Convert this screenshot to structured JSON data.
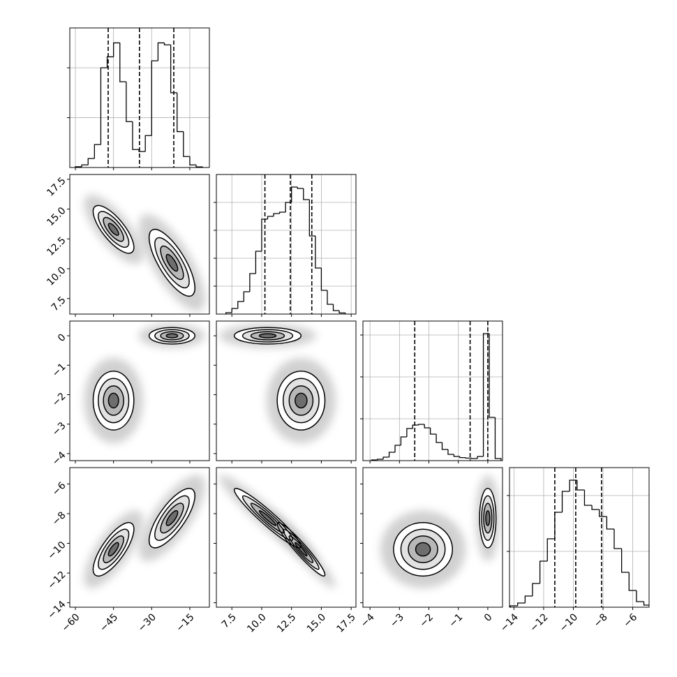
{
  "chart_data": {
    "type": "corner",
    "contour_sigmas": [
      0.5,
      1,
      1.5,
      2
    ],
    "parameters": [
      {
        "range": [
          -62.2,
          -7.3
        ],
        "ticks": [
          {
            "value": -60,
            "label": "−60"
          },
          {
            "value": -45,
            "label": "−45"
          },
          {
            "value": -30,
            "label": "−30"
          },
          {
            "value": -15,
            "label": "−15"
          }
        ],
        "bins": [
          -60,
          -57.5,
          -55,
          -52.5,
          -50,
          -47.5,
          -45,
          -42.5,
          -40,
          -37.5,
          -35,
          -32.5,
          -30,
          -27.5,
          -25,
          -22.5,
          -20,
          -17.5,
          -15,
          -12.5,
          -10
        ],
        "counts": [
          4,
          13,
          45,
          115,
          500,
          555,
          625,
          430,
          230,
          90,
          80,
          160,
          535,
          625,
          615,
          375,
          180,
          55,
          13,
          3
        ],
        "hist_ylim": [
          0,
          700
        ],
        "hist_yticks": [
          250,
          500
        ],
        "quantiles": [
          -47.1,
          -34.8,
          -21.3
        ]
      },
      {
        "range": [
          6.2,
          17.9
        ],
        "ticks": [
          7.5,
          {
            "value": 10,
            "label": "10.0"
          },
          12.5,
          {
            "value": 15,
            "label": "15.0"
          },
          17.5
        ],
        "bins": [
          7,
          7.5,
          8,
          8.5,
          9,
          9.5,
          10,
          10.5,
          11,
          11.5,
          12,
          12.5,
          13,
          13.5,
          14,
          14.5,
          15,
          15.5,
          16,
          16.5,
          17
        ],
        "counts": [
          10,
          40,
          90,
          160,
          290,
          450,
          680,
          700,
          720,
          730,
          800,
          910,
          900,
          820,
          560,
          330,
          170,
          70,
          25,
          8
        ],
        "hist_ylim": [
          0,
          1000
        ],
        "hist_yticks": [
          200,
          400,
          600,
          800
        ],
        "quantiles": [
          10.27,
          12.4,
          14.2
        ]
      },
      {
        "range": [
          -4.24,
          0.5
        ],
        "ticks": [
          {
            "value": -4,
            "label": "−4"
          },
          {
            "value": -3,
            "label": "−3"
          },
          {
            "value": -2,
            "label": "−2"
          },
          {
            "value": -1,
            "label": "−1"
          },
          0
        ],
        "bins": [
          -3.95,
          -3.75,
          -3.55,
          -3.35,
          -3.15,
          -2.95,
          -2.75,
          -2.55,
          -2.35,
          -2.15,
          -1.95,
          -1.75,
          -1.55,
          -1.35,
          -1.15,
          -0.95,
          -0.75,
          -0.55,
          -0.35,
          -0.15,
          0.05,
          0.25,
          0.45
        ],
        "counts": [
          5,
          10,
          25,
          60,
          110,
          170,
          230,
          255,
          260,
          235,
          190,
          130,
          80,
          45,
          30,
          22,
          18,
          15,
          30,
          910,
          310,
          15
        ],
        "hist_ylim": [
          0,
          1000
        ],
        "hist_yticks": [
          300,
          600,
          900
        ],
        "quantiles": [
          -2.48,
          -0.6,
          0.0
        ]
      },
      {
        "range": [
          -14.3,
          -4.9
        ],
        "ticks": [
          {
            "value": -14,
            "label": "−14"
          },
          {
            "value": -12,
            "label": "−12"
          },
          {
            "value": -10,
            "label": "−10"
          },
          {
            "value": -8,
            "label": "−8"
          },
          {
            "value": -6,
            "label": "−6"
          }
        ],
        "bins": [
          -14.25,
          -13.75,
          -13.25,
          -12.75,
          -12.25,
          -11.75,
          -11.25,
          -10.75,
          -10.25,
          -9.75,
          -9.25,
          -8.75,
          -8.25,
          -7.75,
          -7.25,
          -6.75,
          -6.25,
          -5.75,
          -5.25,
          -4.75
        ],
        "counts": [
          10,
          30,
          80,
          170,
          330,
          490,
          680,
          830,
          910,
          840,
          730,
          700,
          650,
          560,
          420,
          250,
          120,
          40,
          15
        ],
        "hist_ylim": [
          0,
          1000
        ],
        "hist_yticks": [
          400,
          800
        ],
        "quantiles": [
          -11.25,
          -9.84,
          -8.1
        ]
      }
    ],
    "modes": [
      {
        "mean": [
          -45,
          13.3,
          -2.2,
          -10.4
        ],
        "sd": [
          4,
          1.0,
          0.5,
          0.9
        ],
        "corr": [
          [
            1,
            -0.75,
            0,
            0.75
          ],
          [
            -0.75,
            1,
            0,
            -0.95
          ],
          [
            0,
            0,
            1,
            0
          ],
          [
            0.75,
            -0.95,
            0,
            1
          ]
        ]
      },
      {
        "mean": [
          -22,
          10.5,
          0.0,
          -8.3
        ],
        "sd": [
          4.5,
          1.4,
          0.14,
          1.0
        ],
        "corr": [
          [
            1,
            -0.75,
            0,
            0.75
          ],
          [
            -0.75,
            1,
            0,
            -0.95
          ],
          [
            0,
            0,
            1,
            0
          ],
          [
            0.75,
            -0.95,
            0,
            1
          ]
        ]
      }
    ]
  }
}
